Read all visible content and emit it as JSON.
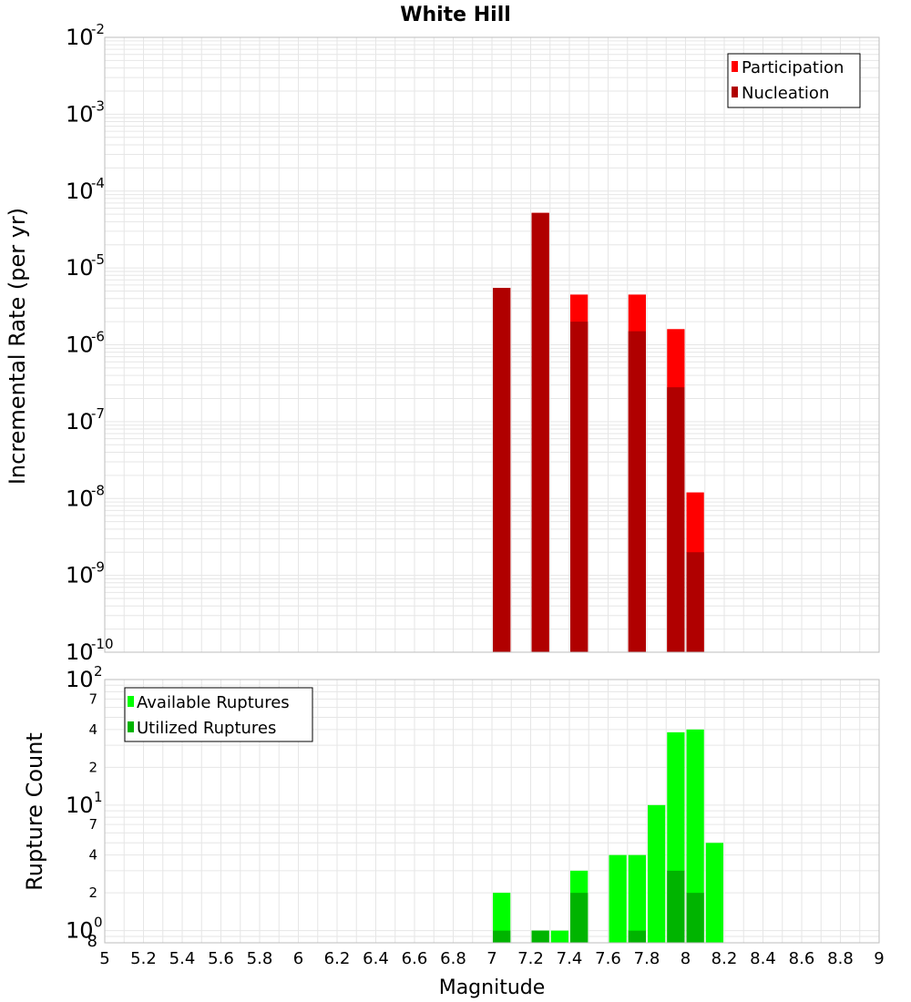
{
  "chart_data": [
    {
      "type": "bar",
      "title": "White Hill",
      "xlabel": "",
      "ylabel": "Incremental Rate (per yr)",
      "yscale": "log",
      "xlim": [
        5,
        9
      ],
      "ylim": [
        1e-10,
        0.01
      ],
      "bin_width": 0.1,
      "y_tick_base": "10",
      "y_ticks": [
        {
          "exp": "-10",
          "value": 1e-10
        },
        {
          "exp": "-9",
          "value": 1e-09
        },
        {
          "exp": "-8",
          "value": 1e-08
        },
        {
          "exp": "-7",
          "value": 1e-07
        },
        {
          "exp": "-6",
          "value": 1e-06
        },
        {
          "exp": "-5",
          "value": 1e-05
        },
        {
          "exp": "-4",
          "value": 0.0001
        },
        {
          "exp": "-3",
          "value": 0.001
        },
        {
          "exp": "-2",
          "value": 0.01
        }
      ],
      "legend_position": "top-right",
      "series": [
        {
          "name": "Participation",
          "color": "#ff0000",
          "x": [
            7.05,
            7.25,
            7.45,
            7.75,
            7.95,
            8.05
          ],
          "values": [
            5.5e-06,
            5.2e-05,
            4.5e-06,
            4.5e-06,
            1.6e-06,
            1.2e-08
          ]
        },
        {
          "name": "Nucleation",
          "color": "#b00000",
          "x": [
            7.05,
            7.25,
            7.45,
            7.75,
            7.95,
            8.05
          ],
          "values": [
            5.5e-06,
            5.2e-05,
            2e-06,
            1.5e-06,
            2.8e-07,
            2e-09
          ]
        }
      ]
    },
    {
      "type": "bar",
      "title": "",
      "xlabel": "Magnitude",
      "ylabel": "Rupture Count",
      "yscale": "log",
      "xlim": [
        5,
        9
      ],
      "ylim": [
        0.8,
        100
      ],
      "bin_width": 0.1,
      "x_ticks": [
        "5",
        "5.2",
        "5.4",
        "5.6",
        "5.8",
        "6",
        "6.2",
        "6.4",
        "6.6",
        "6.8",
        "7",
        "7.2",
        "7.4",
        "7.6",
        "7.8",
        "8",
        "8.2",
        "8.4",
        "8.6",
        "8.8",
        "9"
      ],
      "y_tick_base": "10",
      "y_major_ticks": [
        {
          "exp": "0",
          "value": 1
        },
        {
          "exp": "1",
          "value": 10
        },
        {
          "exp": "2",
          "value": 100
        }
      ],
      "y_minor_ticks": [
        {
          "label": "8",
          "value": 0.8
        },
        {
          "label": "2",
          "value": 2
        },
        {
          "label": "4",
          "value": 4
        },
        {
          "label": "7",
          "value": 7
        },
        {
          "label": "2",
          "value": 20
        },
        {
          "label": "4",
          "value": 40
        },
        {
          "label": "7",
          "value": 70
        }
      ],
      "legend_position": "top-left",
      "series": [
        {
          "name": "Available Ruptures",
          "color": "#00ff00",
          "x": [
            7.05,
            7.25,
            7.35,
            7.45,
            7.65,
            7.75,
            7.85,
            7.95,
            8.05,
            8.15
          ],
          "values": [
            2,
            1,
            1,
            3,
            4,
            4,
            10,
            38,
            40,
            5
          ]
        },
        {
          "name": "Utilized Ruptures",
          "color": "#00b400",
          "x": [
            7.05,
            7.25,
            7.45,
            7.75,
            7.95,
            8.05
          ],
          "values": [
            1,
            1,
            2,
            1,
            3,
            2
          ]
        }
      ]
    }
  ]
}
